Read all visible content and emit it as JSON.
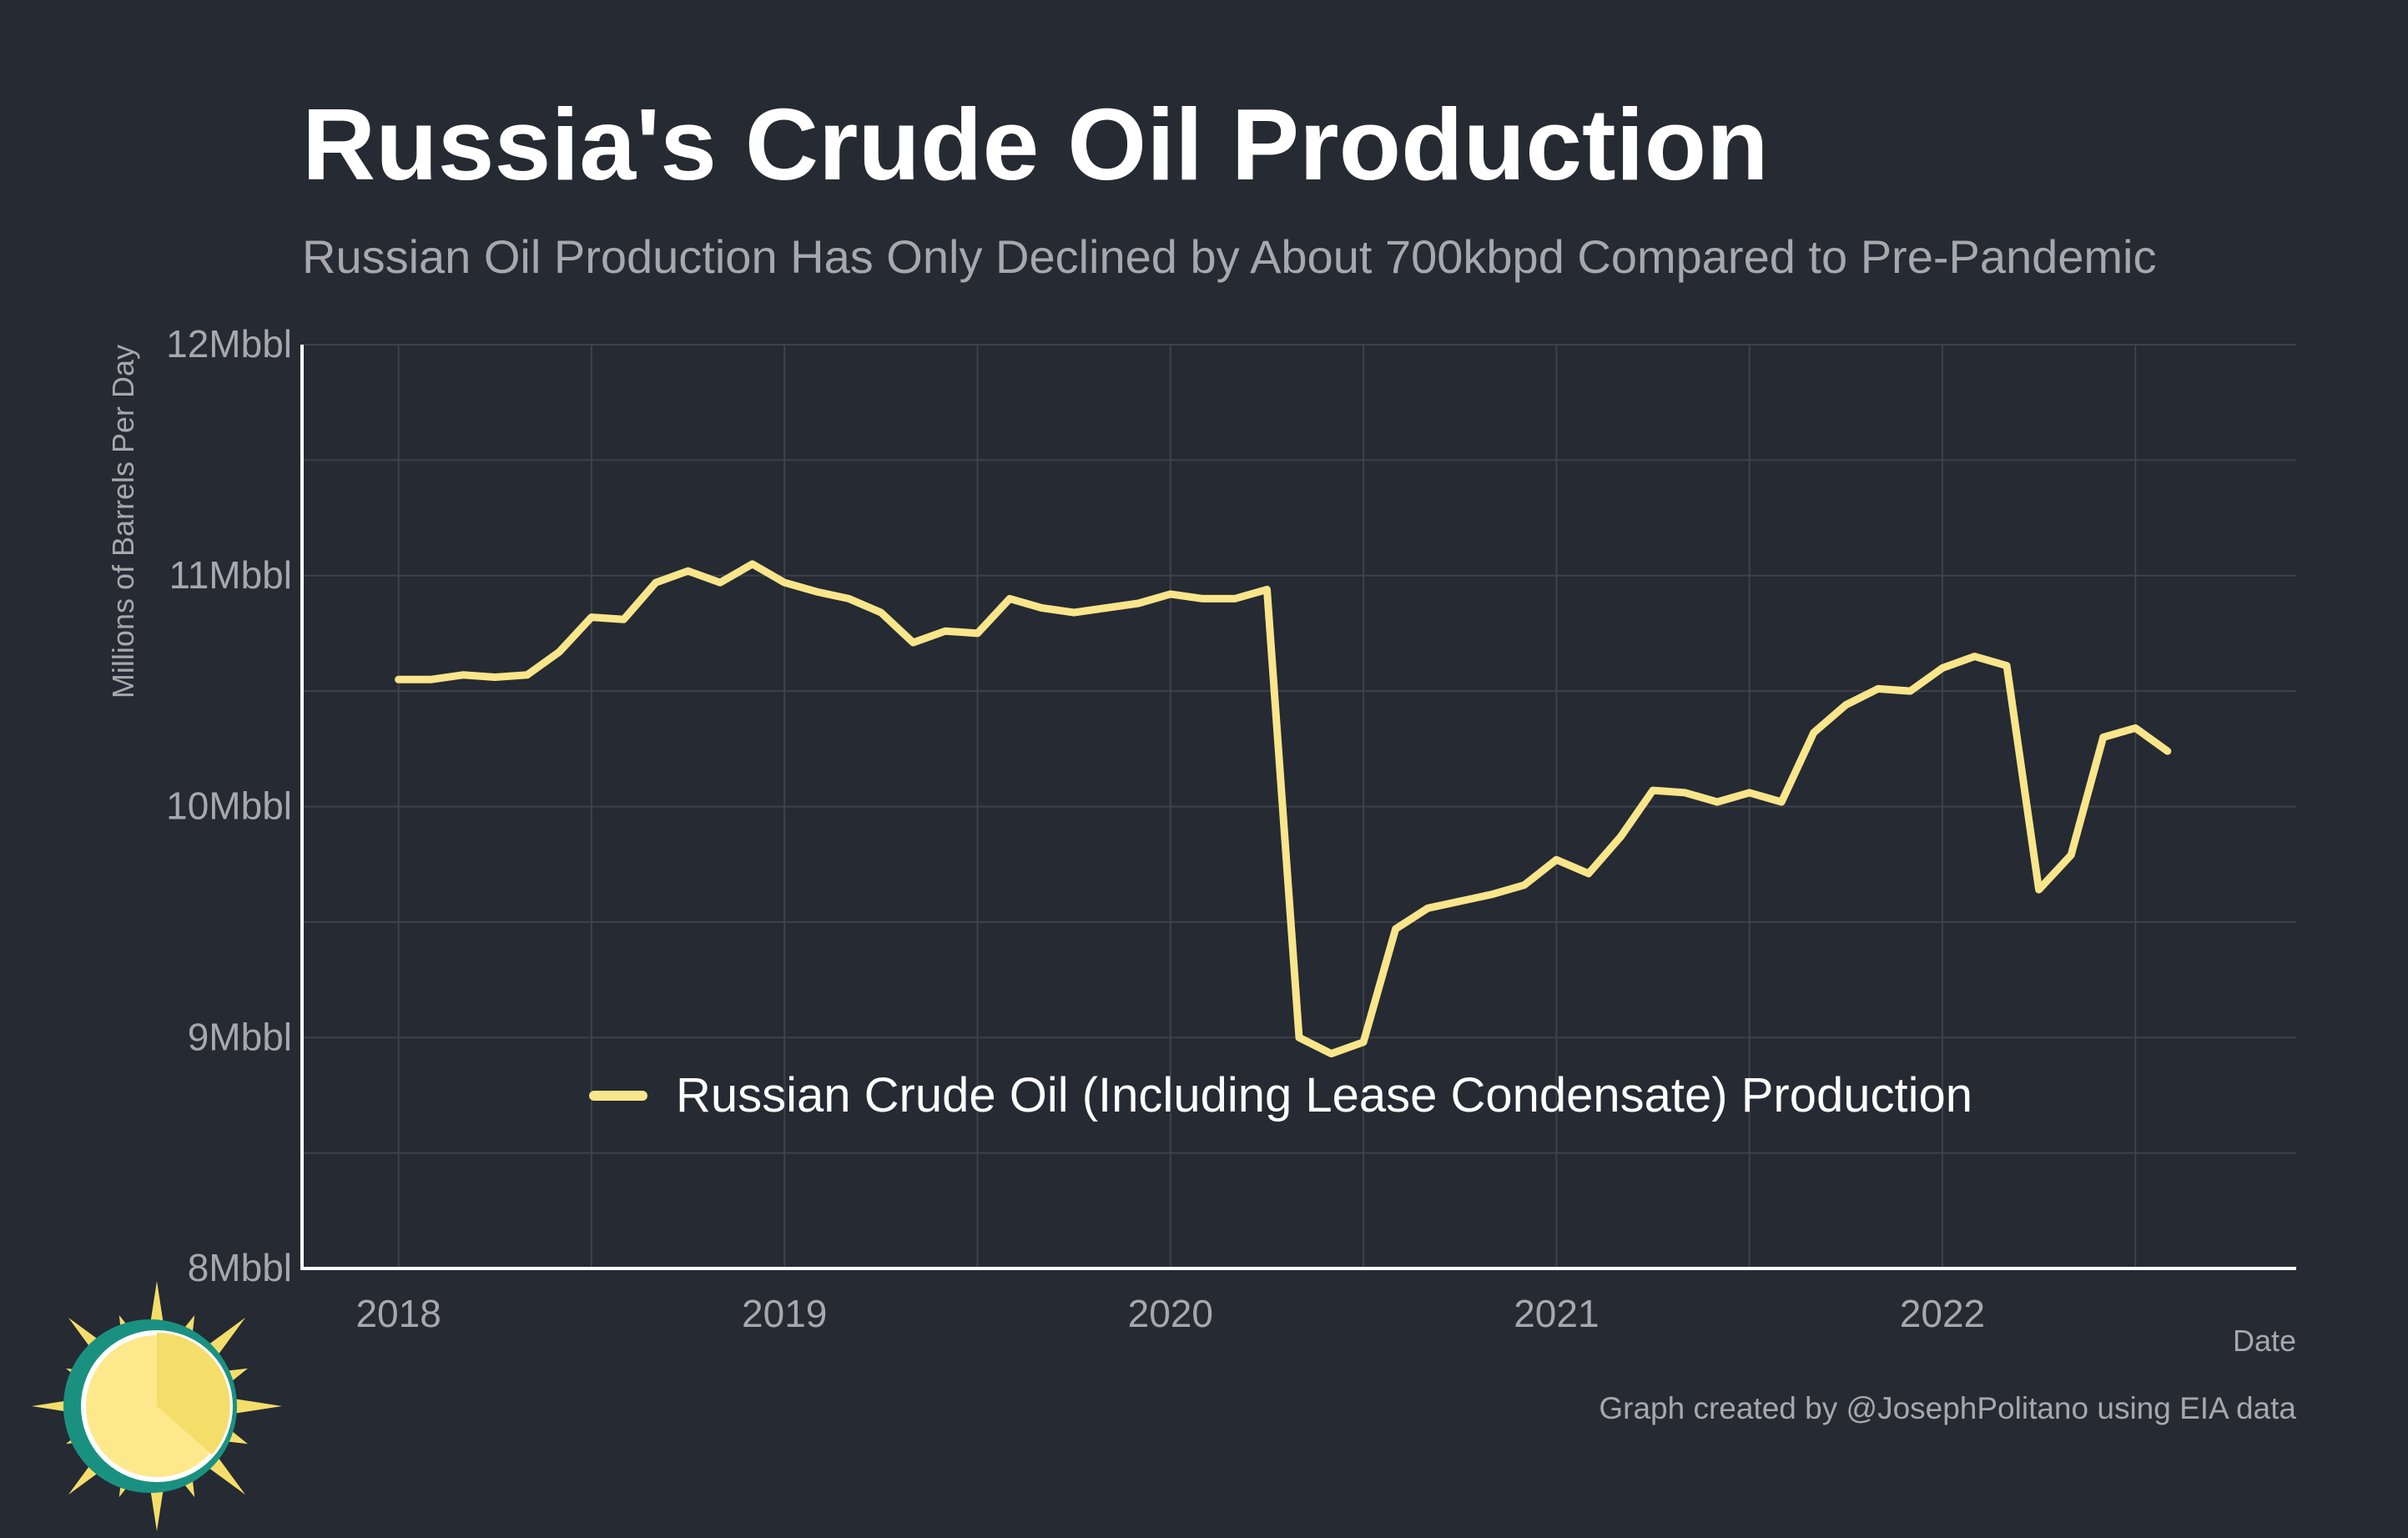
{
  "title": "Russia's Crude Oil Production",
  "subtitle": "Russian Oil Production Has Only Declined by About 700kbpd Compared to Pre-Pandemic",
  "caption": "Graph created by @JosephPolitano using EIA data",
  "colors": {
    "background": "#252a33",
    "line": "#f9e58a",
    "grid": "#3d424b",
    "axis": "#ffffff",
    "tick_text": "#a6a8ad",
    "title": "#ffffff",
    "subtitle": "#a6a8ad",
    "logo_sun": "#f5dd6a",
    "logo_ring": "#1a9180"
  },
  "logo": {
    "icon": "sun-logo-icon"
  },
  "chart_data": {
    "type": "line",
    "title": "Russia's Crude Oil Production",
    "subtitle": "Russian Oil Production Has Only Declined by About 700kbpd Compared to Pre-Pandemic",
    "xlabel": "Date",
    "ylabel": "Millions of Barrels Per Day",
    "ylim": [
      8,
      12
    ],
    "xlim": [
      "2017-10",
      "2022-12"
    ],
    "y_ticks": [
      8,
      9,
      10,
      11,
      12
    ],
    "y_tick_labels": [
      "8Mbbl",
      "9Mbbl",
      "10Mbbl",
      "11Mbbl",
      "12Mbbl"
    ],
    "y_minor_gridlines": [
      8.5,
      9.5,
      10.5,
      11.5
    ],
    "x_ticks": [
      "2018-01",
      "2019-01",
      "2020-01",
      "2021-01",
      "2022-01"
    ],
    "x_tick_labels": [
      "2018",
      "2019",
      "2020",
      "2021",
      "2022"
    ],
    "x_minor_gridlines": [
      "2018-07",
      "2019-07",
      "2020-07",
      "2021-07",
      "2022-07"
    ],
    "grid": true,
    "legend_position": "bottom-center",
    "series": [
      {
        "name": "Russian Crude Oil (Including Lease Condensate) Production",
        "color": "#f9e58a",
        "x": [
          "2018-01",
          "2018-02",
          "2018-03",
          "2018-04",
          "2018-05",
          "2018-06",
          "2018-07",
          "2018-08",
          "2018-09",
          "2018-10",
          "2018-11",
          "2018-12",
          "2019-01",
          "2019-02",
          "2019-03",
          "2019-04",
          "2019-05",
          "2019-06",
          "2019-07",
          "2019-08",
          "2019-09",
          "2019-10",
          "2019-11",
          "2019-12",
          "2020-01",
          "2020-02",
          "2020-03",
          "2020-04",
          "2020-05",
          "2020-06",
          "2020-07",
          "2020-08",
          "2020-09",
          "2020-10",
          "2020-11",
          "2020-12",
          "2021-01",
          "2021-02",
          "2021-03",
          "2021-04",
          "2021-05",
          "2021-06",
          "2021-07",
          "2021-08",
          "2021-09",
          "2021-10",
          "2021-11",
          "2021-12",
          "2022-01",
          "2022-02",
          "2022-03",
          "2022-04",
          "2022-05",
          "2022-06",
          "2022-07",
          "2022-08"
        ],
        "y": [
          10.55,
          10.55,
          10.57,
          10.56,
          10.57,
          10.67,
          10.82,
          10.81,
          10.97,
          11.02,
          10.97,
          11.05,
          10.97,
          10.93,
          10.9,
          10.84,
          10.71,
          10.76,
          10.75,
          10.9,
          10.86,
          10.84,
          10.86,
          10.88,
          10.92,
          10.9,
          10.9,
          10.94,
          9.0,
          8.93,
          8.98,
          9.47,
          9.56,
          9.59,
          9.62,
          9.66,
          9.77,
          9.71,
          9.87,
          10.07,
          10.06,
          10.02,
          10.06,
          10.02,
          10.32,
          10.44,
          10.51,
          10.5,
          10.6,
          10.65,
          10.61,
          9.64,
          9.79,
          10.3,
          10.34,
          10.24
        ]
      }
    ]
  }
}
